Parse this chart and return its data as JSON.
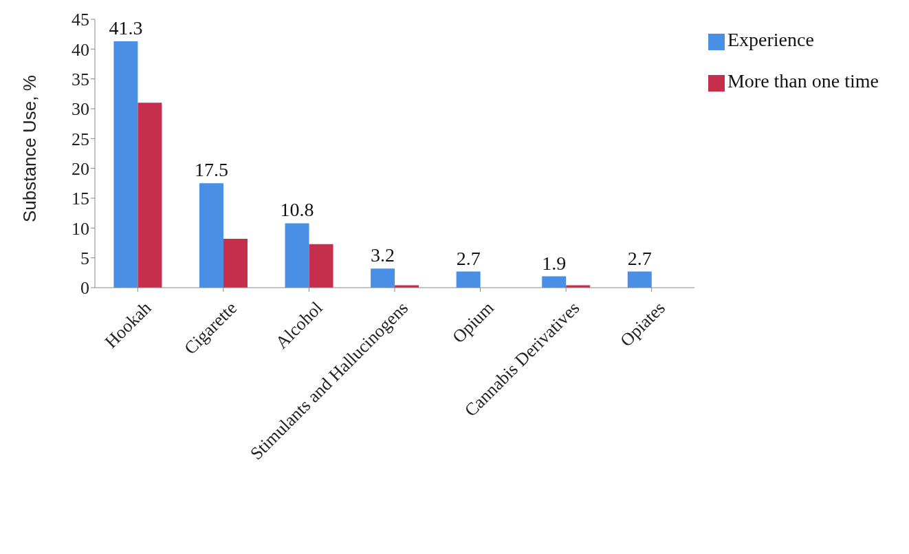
{
  "chart_data": {
    "type": "bar",
    "ylabel": "Substance Use, %",
    "categories": [
      "Hookah",
      "Cigarette",
      "Alcohol",
      "Stimulants and Hallucinogens",
      "Opium",
      "Cannabis Derivatives",
      "Opiates"
    ],
    "series": [
      {
        "name": "Experience",
        "color": "#4a8fe6",
        "values": [
          41.3,
          17.5,
          10.8,
          3.2,
          2.7,
          1.9,
          2.7
        ],
        "value_labels": [
          "41.3",
          "17.5",
          "10.8",
          "3.2",
          "2.7",
          "1.9",
          "2.7"
        ]
      },
      {
        "name": "More than one time",
        "color": "#c62f4b",
        "values": [
          31,
          8.2,
          7.3,
          0.4,
          0,
          0.4,
          0
        ]
      }
    ],
    "ylim": [
      0,
      45
    ],
    "yticks": [
      0,
      5,
      10,
      15,
      20,
      25,
      30,
      35,
      40,
      45
    ],
    "grid": false,
    "legend": "top right"
  }
}
